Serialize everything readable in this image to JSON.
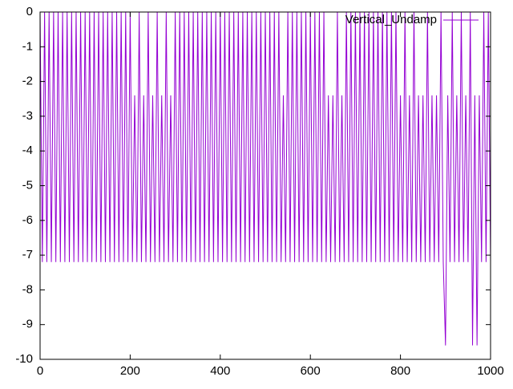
{
  "chart_data": {
    "type": "line",
    "x": [
      0,
      5,
      10,
      15,
      20,
      25,
      30,
      35,
      40,
      45,
      50,
      55,
      60,
      65,
      70,
      75,
      80,
      85,
      90,
      95,
      100,
      105,
      110,
      115,
      120,
      125,
      130,
      135,
      140,
      145,
      150,
      155,
      160,
      165,
      170,
      175,
      180,
      185,
      190,
      195,
      200,
      205,
      210,
      215,
      220,
      225,
      230,
      235,
      240,
      245,
      250,
      255,
      260,
      265,
      270,
      275,
      280,
      285,
      290,
      295,
      300,
      305,
      310,
      315,
      320,
      325,
      330,
      335,
      340,
      345,
      350,
      355,
      360,
      365,
      370,
      375,
      380,
      385,
      390,
      395,
      400,
      405,
      410,
      415,
      420,
      425,
      430,
      435,
      440,
      445,
      450,
      455,
      460,
      465,
      470,
      475,
      480,
      485,
      490,
      495,
      500,
      505,
      510,
      515,
      520,
      525,
      530,
      535,
      540,
      545,
      550,
      555,
      560,
      565,
      570,
      575,
      580,
      585,
      590,
      595,
      600,
      605,
      610,
      615,
      620,
      625,
      630,
      635,
      640,
      645,
      650,
      655,
      660,
      665,
      670,
      675,
      680,
      685,
      690,
      695,
      700,
      705,
      710,
      715,
      720,
      725,
      730,
      735,
      740,
      745,
      750,
      755,
      760,
      765,
      770,
      775,
      780,
      785,
      790,
      795,
      800,
      805,
      810,
      815,
      820,
      825,
      830,
      835,
      840,
      845,
      850,
      855,
      860,
      865,
      870,
      875,
      880,
      885,
      890,
      895,
      900,
      905,
      910,
      915,
      920,
      925,
      930,
      935,
      940,
      945,
      950,
      955,
      960,
      965,
      970,
      975,
      980,
      985,
      990,
      995,
      1000
    ],
    "series": [
      {
        "name": "Vertical_Undamp",
        "color": "#9400d3",
        "values": [
          0,
          -7.2,
          0,
          -7.2,
          0,
          -7.2,
          0,
          -7.2,
          0,
          -7.2,
          0,
          -7.2,
          0,
          -7.2,
          0,
          -7.2,
          0,
          -7.2,
          0,
          -7.2,
          0,
          -7.2,
          0,
          -7.2,
          0,
          -7.2,
          0,
          -7.2,
          0,
          -7.2,
          0,
          -7.2,
          0,
          -7.2,
          0,
          -7.2,
          0,
          -7.2,
          0,
          -7.2,
          0,
          -7.2,
          -2.4,
          -7.2,
          0,
          -7.2,
          -2.4,
          -7.2,
          0,
          -7.2,
          -2.4,
          -7.2,
          0,
          -7.2,
          -2.4,
          -7.2,
          0,
          -7.2,
          -2.4,
          -7.2,
          0,
          -7.2,
          0,
          -7.2,
          0,
          -7.2,
          0,
          -7.2,
          0,
          -7.2,
          0,
          -7.2,
          0,
          -7.2,
          0,
          -7.2,
          0,
          -7.2,
          0,
          -7.2,
          0,
          -7.2,
          0,
          -7.2,
          0,
          -7.2,
          0,
          -7.2,
          0,
          -7.2,
          0,
          -7.2,
          0,
          -7.2,
          0,
          -7.2,
          0,
          -7.2,
          0,
          -7.2,
          0,
          -7.2,
          0,
          -7.2,
          0,
          -7.2,
          0,
          -7.2,
          -2.4,
          -7.2,
          0,
          -7.2,
          0,
          -7.2,
          0,
          -7.2,
          0,
          -7.2,
          0,
          -7.2,
          0,
          -7.2,
          0,
          -7.2,
          0,
          -7.2,
          0,
          -7.2,
          -2.4,
          -7.2,
          -2.4,
          -7.2,
          0,
          -7.2,
          -2.4,
          -7.2,
          0,
          -7.2,
          0,
          -7.2,
          0,
          -7.2,
          0,
          -7.2,
          0,
          -7.2,
          0,
          -7.2,
          0,
          -7.2,
          0,
          -7.2,
          0,
          -7.2,
          0,
          -7.2,
          0,
          -7.2,
          0,
          -7.2,
          -2.4,
          -7.2,
          0,
          -7.2,
          -2.4,
          -7.2,
          0,
          -7.2,
          -2.4,
          -7.2,
          -2.4,
          -7.2,
          0,
          -7.2,
          -2.4,
          -7.2,
          -2.4,
          -7.2,
          0,
          -7.2,
          -9.6,
          -2.4,
          -7.2,
          0,
          -7.2,
          -2.4,
          -7.2,
          0,
          -7.2,
          -2.4,
          -7.2,
          0,
          -9.6,
          -2.4,
          -9.6,
          -2.4,
          -7.2,
          0,
          -7.2,
          0,
          -7.2
        ]
      }
    ],
    "xlim": [
      0,
      1000
    ],
    "xticks": [
      0,
      200,
      400,
      600,
      800,
      1000
    ],
    "ylim": [
      -10,
      0
    ],
    "yticks": [
      -10,
      -9,
      -8,
      -7,
      -6,
      -5,
      -4,
      -3,
      -2,
      -1,
      0
    ],
    "legend": "top-right"
  }
}
